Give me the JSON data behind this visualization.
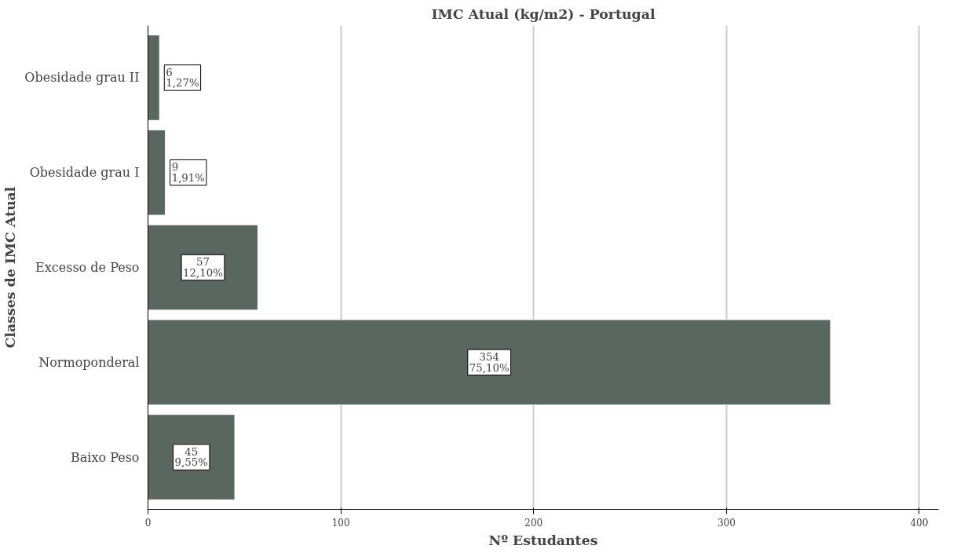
{
  "chart_data": {
    "type": "bar",
    "orientation": "horizontal",
    "title": "IMC Atual (kg/m2) - Portugal",
    "xlabel": "Nº Estudantes",
    "ylabel": "Classes de IMC Atual",
    "categories": [
      "Obesidade grau II",
      "Obesidade grau I",
      "Excesso de Peso",
      "Normoponderal",
      "Baixo Peso"
    ],
    "values": [
      6,
      9,
      57,
      354,
      45
    ],
    "value_labels": [
      "6\n1,27%",
      "9\n1,91%",
      "57\n12,10%",
      "354\n75,10%",
      "45\n9,55%"
    ],
    "color": "#5a6660",
    "xlim": [
      0,
      410
    ],
    "xticks": [
      0,
      100,
      200,
      300,
      400
    ],
    "grid": "x"
  }
}
